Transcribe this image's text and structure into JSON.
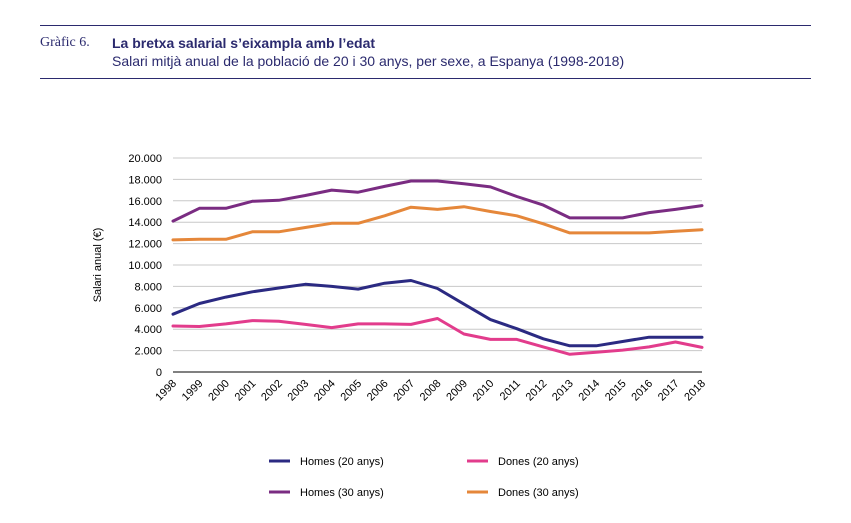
{
  "header": {
    "figure_number": "Gràfic 6.",
    "title": "La bretxa salarial s’eixampla amb l’edat",
    "subtitle": "Salari mitjà anual de la població de 20 i 30 anys, per sexe, a Espanya (1998-2018)"
  },
  "chart_data": {
    "type": "line",
    "title": "La bretxa salarial s’eixampla amb l’edat",
    "subtitle": "Salari mitjà anual de la població de 20 i 30 anys, per sexe, a Espanya (1998-2018)",
    "xlabel": "",
    "ylabel": "Salari anual (€)",
    "ylim": [
      0,
      20000
    ],
    "yticks": [
      0,
      2000,
      4000,
      6000,
      8000,
      10000,
      12000,
      14000,
      16000,
      18000,
      20000
    ],
    "ytick_labels": [
      "0",
      "2.000",
      "4.000",
      "6.000",
      "8.000",
      "10.000",
      "12.000",
      "14.000",
      "16.000",
      "18.000",
      "20.000"
    ],
    "grid": "horizontal",
    "legend_position": "bottom",
    "x": [
      "1998",
      "1999",
      "2000",
      "2001",
      "2002",
      "2003",
      "2004",
      "2005",
      "2006",
      "2007",
      "2008",
      "2009",
      "2010",
      "2011",
      "2012",
      "2013",
      "2014",
      "2015",
      "2016",
      "2017",
      "2018"
    ],
    "series": [
      {
        "name": "Homes (20 anys)",
        "color": "#2b2a82",
        "values": [
          5400,
          6400,
          7000,
          7500,
          7850,
          8200,
          8000,
          7750,
          8300,
          8550,
          7800,
          6350,
          4900,
          4050,
          3100,
          2450,
          2450,
          2850,
          3250,
          3250,
          3250
        ]
      },
      {
        "name": "Dones (20 anys)",
        "color": "#e23c8c",
        "values": [
          4300,
          4250,
          4500,
          4800,
          4750,
          4450,
          4150,
          4500,
          4500,
          4450,
          5000,
          3550,
          3050,
          3050,
          2350,
          1650,
          1850,
          2050,
          2350,
          2800,
          2300
        ]
      },
      {
        "name": "Homes (30 anys)",
        "color": "#7a2c82",
        "values": [
          14100,
          15300,
          15300,
          15950,
          16050,
          16500,
          17000,
          16800,
          17350,
          17850,
          17850,
          17600,
          17300,
          16400,
          15600,
          14400,
          14400,
          14400,
          14900,
          15200,
          15550
        ]
      },
      {
        "name": "Dones (30 anys)",
        "color": "#e5873a",
        "values": [
          12350,
          12400,
          12400,
          13100,
          13100,
          13500,
          13900,
          13900,
          14600,
          15400,
          15200,
          15450,
          15000,
          14600,
          13850,
          13000,
          13000,
          13000,
          13000,
          13150,
          13300
        ]
      }
    ]
  }
}
